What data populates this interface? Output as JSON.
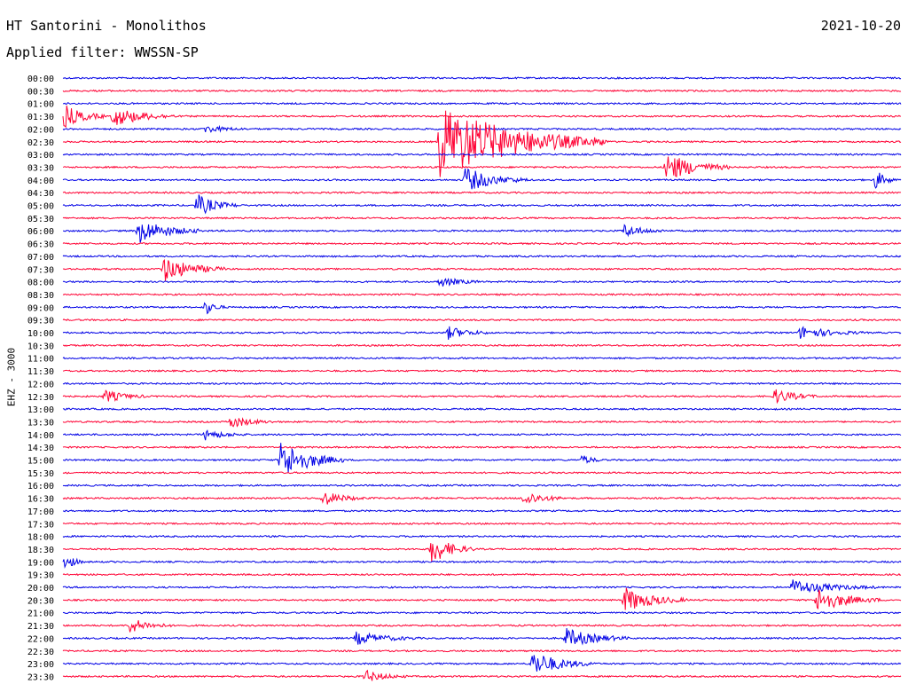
{
  "header": {
    "title": "HT Santorini - Monolithos",
    "date": "2021-10-20",
    "filter": "Applied filter: WWSSN-SP",
    "channel_label": "EHZ - 3000"
  },
  "colors": {
    "trace_a": "#0000e6",
    "trace_b": "#ff0033"
  },
  "chart_data": {
    "type": "line",
    "title": "HT Santorini - Monolithos",
    "ylabel": "EHZ - 3000",
    "rows": [
      "00:00",
      "00:30",
      "01:00",
      "01:30",
      "02:00",
      "02:30",
      "03:00",
      "03:30",
      "04:00",
      "04:30",
      "05:00",
      "05:30",
      "06:00",
      "06:30",
      "07:00",
      "07:30",
      "08:00",
      "08:30",
      "09:00",
      "09:30",
      "10:00",
      "10:30",
      "11:00",
      "11:30",
      "12:00",
      "12:30",
      "13:00",
      "13:30",
      "14:00",
      "14:30",
      "15:00",
      "15:30",
      "16:00",
      "16:30",
      "17:00",
      "17:30",
      "18:00",
      "18:30",
      "19:00",
      "19:30",
      "20:00",
      "20:30",
      "21:00",
      "21:30",
      "22:00",
      "22:30",
      "23:00",
      "23:30"
    ],
    "events": [
      {
        "row": "01:30",
        "t": 0.0,
        "amp": 1.0,
        "dur": 0.02
      },
      {
        "row": "01:30",
        "t": 0.06,
        "amp": 0.8,
        "dur": 0.03
      },
      {
        "row": "02:00",
        "t": 0.17,
        "amp": 0.3,
        "dur": 0.02
      },
      {
        "row": "02:30",
        "t": 0.45,
        "amp": 3.0,
        "dur": 0.08
      },
      {
        "row": "03:30",
        "t": 0.72,
        "amp": 1.2,
        "dur": 0.03
      },
      {
        "row": "04:00",
        "t": 0.48,
        "amp": 1.0,
        "dur": 0.03
      },
      {
        "row": "04:00",
        "t": 0.97,
        "amp": 0.8,
        "dur": 0.01
      },
      {
        "row": "05:00",
        "t": 0.16,
        "amp": 0.9,
        "dur": 0.02
      },
      {
        "row": "06:00",
        "t": 0.09,
        "amp": 1.0,
        "dur": 0.03
      },
      {
        "row": "06:00",
        "t": 0.67,
        "amp": 0.5,
        "dur": 0.02
      },
      {
        "row": "07:30",
        "t": 0.12,
        "amp": 1.0,
        "dur": 0.03
      },
      {
        "row": "08:00",
        "t": 0.45,
        "amp": 0.4,
        "dur": 0.02
      },
      {
        "row": "09:00",
        "t": 0.17,
        "amp": 0.6,
        "dur": 0.01
      },
      {
        "row": "10:00",
        "t": 0.46,
        "amp": 0.5,
        "dur": 0.02
      },
      {
        "row": "10:00",
        "t": 0.88,
        "amp": 0.5,
        "dur": 0.03
      },
      {
        "row": "12:30",
        "t": 0.05,
        "amp": 0.5,
        "dur": 0.02
      },
      {
        "row": "12:30",
        "t": 0.85,
        "amp": 0.6,
        "dur": 0.02
      },
      {
        "row": "13:30",
        "t": 0.2,
        "amp": 0.5,
        "dur": 0.02
      },
      {
        "row": "14:00",
        "t": 0.17,
        "amp": 0.4,
        "dur": 0.02
      },
      {
        "row": "15:00",
        "t": 0.26,
        "amp": 1.6,
        "dur": 0.03
      },
      {
        "row": "15:00",
        "t": 0.62,
        "amp": 0.4,
        "dur": 0.01
      },
      {
        "row": "16:30",
        "t": 0.31,
        "amp": 0.6,
        "dur": 0.02
      },
      {
        "row": "16:30",
        "t": 0.55,
        "amp": 0.6,
        "dur": 0.02
      },
      {
        "row": "18:30",
        "t": 0.44,
        "amp": 1.2,
        "dur": 0.02
      },
      {
        "row": "19:00",
        "t": 0.0,
        "amp": 0.8,
        "dur": 0.01
      },
      {
        "row": "20:00",
        "t": 0.87,
        "amp": 0.6,
        "dur": 0.04
      },
      {
        "row": "20:30",
        "t": 0.67,
        "amp": 1.0,
        "dur": 0.03
      },
      {
        "row": "20:30",
        "t": 0.9,
        "amp": 1.0,
        "dur": 0.03
      },
      {
        "row": "21:30",
        "t": 0.08,
        "amp": 0.6,
        "dur": 0.02
      },
      {
        "row": "22:00",
        "t": 0.35,
        "amp": 0.5,
        "dur": 0.03
      },
      {
        "row": "22:00",
        "t": 0.6,
        "amp": 0.8,
        "dur": 0.03
      },
      {
        "row": "23:00",
        "t": 0.56,
        "amp": 1.0,
        "dur": 0.03
      },
      {
        "row": "23:30",
        "t": 0.36,
        "amp": 0.5,
        "dur": 0.02
      }
    ]
  }
}
